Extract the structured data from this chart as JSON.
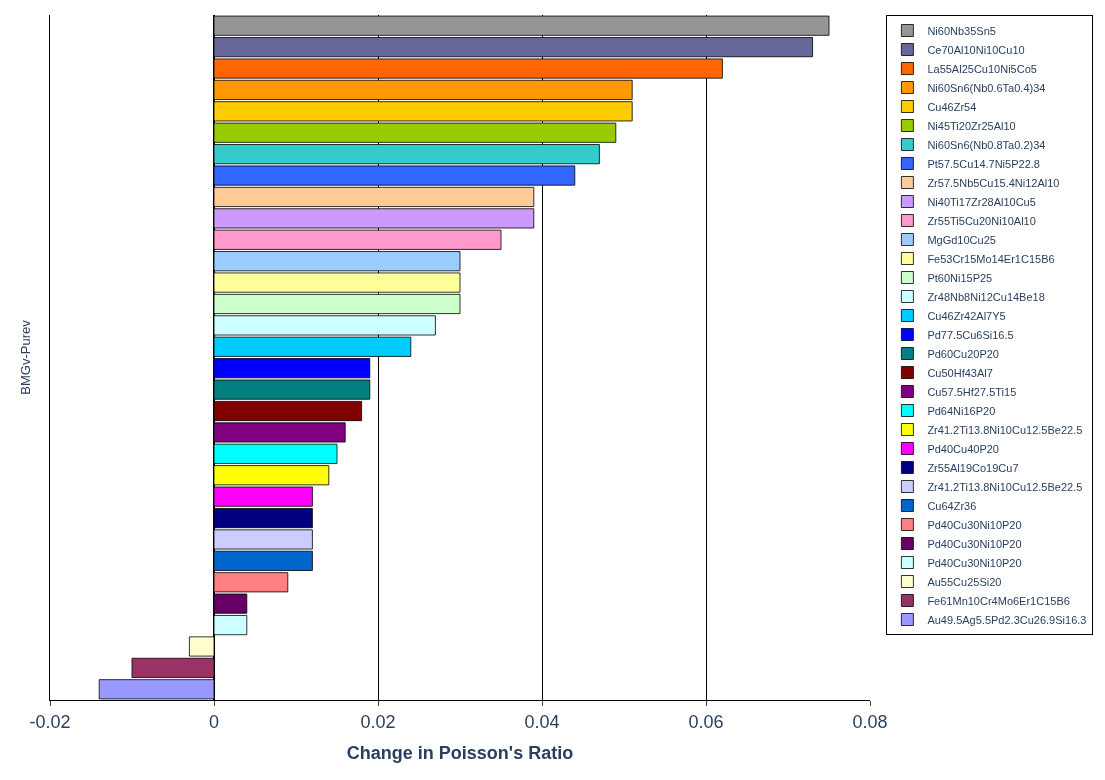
{
  "chart_data": {
    "type": "bar",
    "orientation": "horizontal",
    "xlabel": "Change in Poisson's Ratio",
    "ylabel": "BMGv-Purev",
    "categories": [
      null,
      null,
      null,
      null,
      null,
      null,
      null,
      null,
      null,
      null,
      null,
      null,
      null,
      null,
      null,
      null,
      null,
      null,
      null,
      null,
      null,
      null,
      null,
      null,
      null,
      null,
      null,
      null,
      null,
      null,
      null,
      null
    ],
    "xlim": [
      -0.02,
      0.08
    ],
    "xticks": [
      -0.02,
      0,
      0.02,
      0.04,
      0.06,
      0.08
    ],
    "grid": "x",
    "legend": "right",
    "tick_labels": "x",
    "series": [
      {
        "name": "Ni60Nb35Sn5",
        "color": "#969696",
        "values": [
          0.075,
          null,
          null,
          null,
          null,
          null,
          null,
          null,
          null,
          null,
          null,
          null,
          null,
          null,
          null,
          null,
          null,
          null,
          null,
          null,
          null,
          null,
          null,
          null,
          null,
          null,
          null,
          null,
          null,
          null,
          null,
          null
        ]
      },
      {
        "name": "Ce70Al10Ni10Cu10",
        "color": "#666699",
        "values": [
          null,
          0.073,
          null,
          null,
          null,
          null,
          null,
          null,
          null,
          null,
          null,
          null,
          null,
          null,
          null,
          null,
          null,
          null,
          null,
          null,
          null,
          null,
          null,
          null,
          null,
          null,
          null,
          null,
          null,
          null,
          null,
          null
        ]
      },
      {
        "name": "La55Al25Cu10Ni5Co5",
        "color": "#ff6600",
        "values": [
          null,
          null,
          0.062,
          null,
          null,
          null,
          null,
          null,
          null,
          null,
          null,
          null,
          null,
          null,
          null,
          null,
          null,
          null,
          null,
          null,
          null,
          null,
          null,
          null,
          null,
          null,
          null,
          null,
          null,
          null,
          null,
          null
        ]
      },
      {
        "name": "Ni60Sn6(Nb0.6Ta0.4)34",
        "color": "#ff9900",
        "values": [
          null,
          null,
          null,
          0.051,
          null,
          null,
          null,
          null,
          null,
          null,
          null,
          null,
          null,
          null,
          null,
          null,
          null,
          null,
          null,
          null,
          null,
          null,
          null,
          null,
          null,
          null,
          null,
          null,
          null,
          null,
          null,
          null
        ]
      },
      {
        "name": "Cu46Zr54",
        "color": "#ffcc00",
        "values": [
          null,
          null,
          null,
          null,
          0.051,
          null,
          null,
          null,
          null,
          null,
          null,
          null,
          null,
          null,
          null,
          null,
          null,
          null,
          null,
          null,
          null,
          null,
          null,
          null,
          null,
          null,
          null,
          null,
          null,
          null,
          null,
          null
        ]
      },
      {
        "name": "Ni45Ti20Zr25Al10",
        "color": "#99cc00",
        "values": [
          null,
          null,
          null,
          null,
          null,
          0.049,
          null,
          null,
          null,
          null,
          null,
          null,
          null,
          null,
          null,
          null,
          null,
          null,
          null,
          null,
          null,
          null,
          null,
          null,
          null,
          null,
          null,
          null,
          null,
          null,
          null,
          null
        ]
      },
      {
        "name": "Ni60Sn6(Nb0.8Ta0.2)34",
        "color": "#33cccc",
        "values": [
          null,
          null,
          null,
          null,
          null,
          null,
          0.047,
          null,
          null,
          null,
          null,
          null,
          null,
          null,
          null,
          null,
          null,
          null,
          null,
          null,
          null,
          null,
          null,
          null,
          null,
          null,
          null,
          null,
          null,
          null,
          null,
          null
        ]
      },
      {
        "name": "Pt57.5Cu14.7Ni5P22.8",
        "color": "#3366ff",
        "values": [
          null,
          null,
          null,
          null,
          null,
          null,
          null,
          0.044,
          null,
          null,
          null,
          null,
          null,
          null,
          null,
          null,
          null,
          null,
          null,
          null,
          null,
          null,
          null,
          null,
          null,
          null,
          null,
          null,
          null,
          null,
          null,
          null
        ]
      },
      {
        "name": "Zr57.5Nb5Cu15.4Ni12Al10",
        "color": "#ffcc99",
        "values": [
          null,
          null,
          null,
          null,
          null,
          null,
          null,
          null,
          0.039,
          null,
          null,
          null,
          null,
          null,
          null,
          null,
          null,
          null,
          null,
          null,
          null,
          null,
          null,
          null,
          null,
          null,
          null,
          null,
          null,
          null,
          null,
          null
        ]
      },
      {
        "name": "Ni40Ti17Zr28Al10Cu5",
        "color": "#cc99ff",
        "values": [
          null,
          null,
          null,
          null,
          null,
          null,
          null,
          null,
          null,
          0.039,
          null,
          null,
          null,
          null,
          null,
          null,
          null,
          null,
          null,
          null,
          null,
          null,
          null,
          null,
          null,
          null,
          null,
          null,
          null,
          null,
          null,
          null
        ]
      },
      {
        "name": "Zr55Ti5Cu20Ni10Al10",
        "color": "#ff99cc",
        "values": [
          null,
          null,
          null,
          null,
          null,
          null,
          null,
          null,
          null,
          null,
          0.035,
          null,
          null,
          null,
          null,
          null,
          null,
          null,
          null,
          null,
          null,
          null,
          null,
          null,
          null,
          null,
          null,
          null,
          null,
          null,
          null,
          null
        ]
      },
      {
        "name": "MgGd10Cu25",
        "color": "#99ccff",
        "values": [
          null,
          null,
          null,
          null,
          null,
          null,
          null,
          null,
          null,
          null,
          null,
          0.03,
          null,
          null,
          null,
          null,
          null,
          null,
          null,
          null,
          null,
          null,
          null,
          null,
          null,
          null,
          null,
          null,
          null,
          null,
          null,
          null
        ]
      },
      {
        "name": "Fe53Cr15Mo14Er1C15B6",
        "color": "#ffff99",
        "values": [
          null,
          null,
          null,
          null,
          null,
          null,
          null,
          null,
          null,
          null,
          null,
          null,
          0.03,
          null,
          null,
          null,
          null,
          null,
          null,
          null,
          null,
          null,
          null,
          null,
          null,
          null,
          null,
          null,
          null,
          null,
          null,
          null
        ]
      },
      {
        "name": "Pt60Ni15P25",
        "color": "#ccffcc",
        "values": [
          null,
          null,
          null,
          null,
          null,
          null,
          null,
          null,
          null,
          null,
          null,
          null,
          null,
          0.03,
          null,
          null,
          null,
          null,
          null,
          null,
          null,
          null,
          null,
          null,
          null,
          null,
          null,
          null,
          null,
          null,
          null,
          null
        ]
      },
      {
        "name": "Zr48Nb8Ni12Cu14Be18",
        "color": "#ccffff",
        "values": [
          null,
          null,
          null,
          null,
          null,
          null,
          null,
          null,
          null,
          null,
          null,
          null,
          null,
          null,
          0.027,
          null,
          null,
          null,
          null,
          null,
          null,
          null,
          null,
          null,
          null,
          null,
          null,
          null,
          null,
          null,
          null,
          null
        ]
      },
      {
        "name": "Cu46Zr42Al7Y5",
        "color": "#00ccff",
        "values": [
          null,
          null,
          null,
          null,
          null,
          null,
          null,
          null,
          null,
          null,
          null,
          null,
          null,
          null,
          null,
          0.024,
          null,
          null,
          null,
          null,
          null,
          null,
          null,
          null,
          null,
          null,
          null,
          null,
          null,
          null,
          null,
          null
        ]
      },
      {
        "name": "Pd77.5Cu6Si16.5",
        "color": "#0000ff",
        "values": [
          null,
          null,
          null,
          null,
          null,
          null,
          null,
          null,
          null,
          null,
          null,
          null,
          null,
          null,
          null,
          null,
          0.019,
          null,
          null,
          null,
          null,
          null,
          null,
          null,
          null,
          null,
          null,
          null,
          null,
          null,
          null,
          null
        ]
      },
      {
        "name": "Pd60Cu20P20",
        "color": "#008080",
        "values": [
          null,
          null,
          null,
          null,
          null,
          null,
          null,
          null,
          null,
          null,
          null,
          null,
          null,
          null,
          null,
          null,
          null,
          0.019,
          null,
          null,
          null,
          null,
          null,
          null,
          null,
          null,
          null,
          null,
          null,
          null,
          null,
          null
        ]
      },
      {
        "name": "Cu50Hf43Al7",
        "color": "#800000",
        "values": [
          null,
          null,
          null,
          null,
          null,
          null,
          null,
          null,
          null,
          null,
          null,
          null,
          null,
          null,
          null,
          null,
          null,
          null,
          0.018,
          null,
          null,
          null,
          null,
          null,
          null,
          null,
          null,
          null,
          null,
          null,
          null,
          null
        ]
      },
      {
        "name": "Cu57.5Hf27.5Ti15",
        "color": "#800080",
        "values": [
          null,
          null,
          null,
          null,
          null,
          null,
          null,
          null,
          null,
          null,
          null,
          null,
          null,
          null,
          null,
          null,
          null,
          null,
          null,
          0.016,
          null,
          null,
          null,
          null,
          null,
          null,
          null,
          null,
          null,
          null,
          null,
          null
        ]
      },
      {
        "name": "Pd64Ni16P20",
        "color": "#00ffff",
        "values": [
          null,
          null,
          null,
          null,
          null,
          null,
          null,
          null,
          null,
          null,
          null,
          null,
          null,
          null,
          null,
          null,
          null,
          null,
          null,
          null,
          0.015,
          null,
          null,
          null,
          null,
          null,
          null,
          null,
          null,
          null,
          null,
          null
        ]
      },
      {
        "name": "Zr41.2Ti13.8Ni10Cu12.5Be22.5",
        "color": "#ffff00",
        "values": [
          null,
          null,
          null,
          null,
          null,
          null,
          null,
          null,
          null,
          null,
          null,
          null,
          null,
          null,
          null,
          null,
          null,
          null,
          null,
          null,
          null,
          0.014,
          null,
          null,
          null,
          null,
          null,
          null,
          null,
          null,
          null,
          null
        ]
      },
      {
        "name": "Pd40Cu40P20",
        "color": "#ff00ff",
        "values": [
          null,
          null,
          null,
          null,
          null,
          null,
          null,
          null,
          null,
          null,
          null,
          null,
          null,
          null,
          null,
          null,
          null,
          null,
          null,
          null,
          null,
          null,
          0.012,
          null,
          null,
          null,
          null,
          null,
          null,
          null,
          null,
          null
        ]
      },
      {
        "name": "Zr55Al19Co19Cu7",
        "color": "#000080",
        "values": [
          null,
          null,
          null,
          null,
          null,
          null,
          null,
          null,
          null,
          null,
          null,
          null,
          null,
          null,
          null,
          null,
          null,
          null,
          null,
          null,
          null,
          null,
          null,
          0.012,
          null,
          null,
          null,
          null,
          null,
          null,
          null,
          null
        ]
      },
      {
        "name": "Zr41.2Ti13.8Ni10Cu12.5Be22.5",
        "color": "#ccccff",
        "values": [
          null,
          null,
          null,
          null,
          null,
          null,
          null,
          null,
          null,
          null,
          null,
          null,
          null,
          null,
          null,
          null,
          null,
          null,
          null,
          null,
          null,
          null,
          null,
          null,
          0.012,
          null,
          null,
          null,
          null,
          null,
          null,
          null
        ]
      },
      {
        "name": "Cu64Zr36",
        "color": "#0066cc",
        "values": [
          null,
          null,
          null,
          null,
          null,
          null,
          null,
          null,
          null,
          null,
          null,
          null,
          null,
          null,
          null,
          null,
          null,
          null,
          null,
          null,
          null,
          null,
          null,
          null,
          null,
          0.012,
          null,
          null,
          null,
          null,
          null,
          null
        ]
      },
      {
        "name": "Pd40Cu30Ni10P20",
        "color": "#ff8080",
        "values": [
          null,
          null,
          null,
          null,
          null,
          null,
          null,
          null,
          null,
          null,
          null,
          null,
          null,
          null,
          null,
          null,
          null,
          null,
          null,
          null,
          null,
          null,
          null,
          null,
          null,
          null,
          0.009,
          null,
          null,
          null,
          null,
          null
        ]
      },
      {
        "name": "Pd40Cu30Ni10P20",
        "color": "#660066",
        "values": [
          null,
          null,
          null,
          null,
          null,
          null,
          null,
          null,
          null,
          null,
          null,
          null,
          null,
          null,
          null,
          null,
          null,
          null,
          null,
          null,
          null,
          null,
          null,
          null,
          null,
          null,
          null,
          0.004,
          null,
          null,
          null,
          null
        ]
      },
      {
        "name": "Pd40Cu30Ni10P20",
        "color": "#ccffff",
        "values": [
          null,
          null,
          null,
          null,
          null,
          null,
          null,
          null,
          null,
          null,
          null,
          null,
          null,
          null,
          null,
          null,
          null,
          null,
          null,
          null,
          null,
          null,
          null,
          null,
          null,
          null,
          null,
          null,
          0.004,
          null,
          null,
          null
        ]
      },
      {
        "name": "Au55Cu25Si20",
        "color": "#ffffcc",
        "values": [
          null,
          null,
          null,
          null,
          null,
          null,
          null,
          null,
          null,
          null,
          null,
          null,
          null,
          null,
          null,
          null,
          null,
          null,
          null,
          null,
          null,
          null,
          null,
          null,
          null,
          null,
          null,
          null,
          null,
          -0.003,
          null,
          null
        ]
      },
      {
        "name": "Fe61Mn10Cr4Mo6Er1C15B6",
        "color": "#993366",
        "values": [
          null,
          null,
          null,
          null,
          null,
          null,
          null,
          null,
          null,
          null,
          null,
          null,
          null,
          null,
          null,
          null,
          null,
          null,
          null,
          null,
          null,
          null,
          null,
          null,
          null,
          null,
          null,
          null,
          null,
          null,
          -0.01,
          null
        ]
      },
      {
        "name": "Au49.5Ag5.5Pd2.3Cu26.9Si16.3",
        "color": "#9999ff",
        "values": [
          null,
          null,
          null,
          null,
          null,
          null,
          null,
          null,
          null,
          null,
          null,
          null,
          null,
          null,
          null,
          null,
          null,
          null,
          null,
          null,
          null,
          null,
          null,
          null,
          null,
          null,
          null,
          null,
          null,
          null,
          null,
          -0.014
        ]
      }
    ]
  }
}
